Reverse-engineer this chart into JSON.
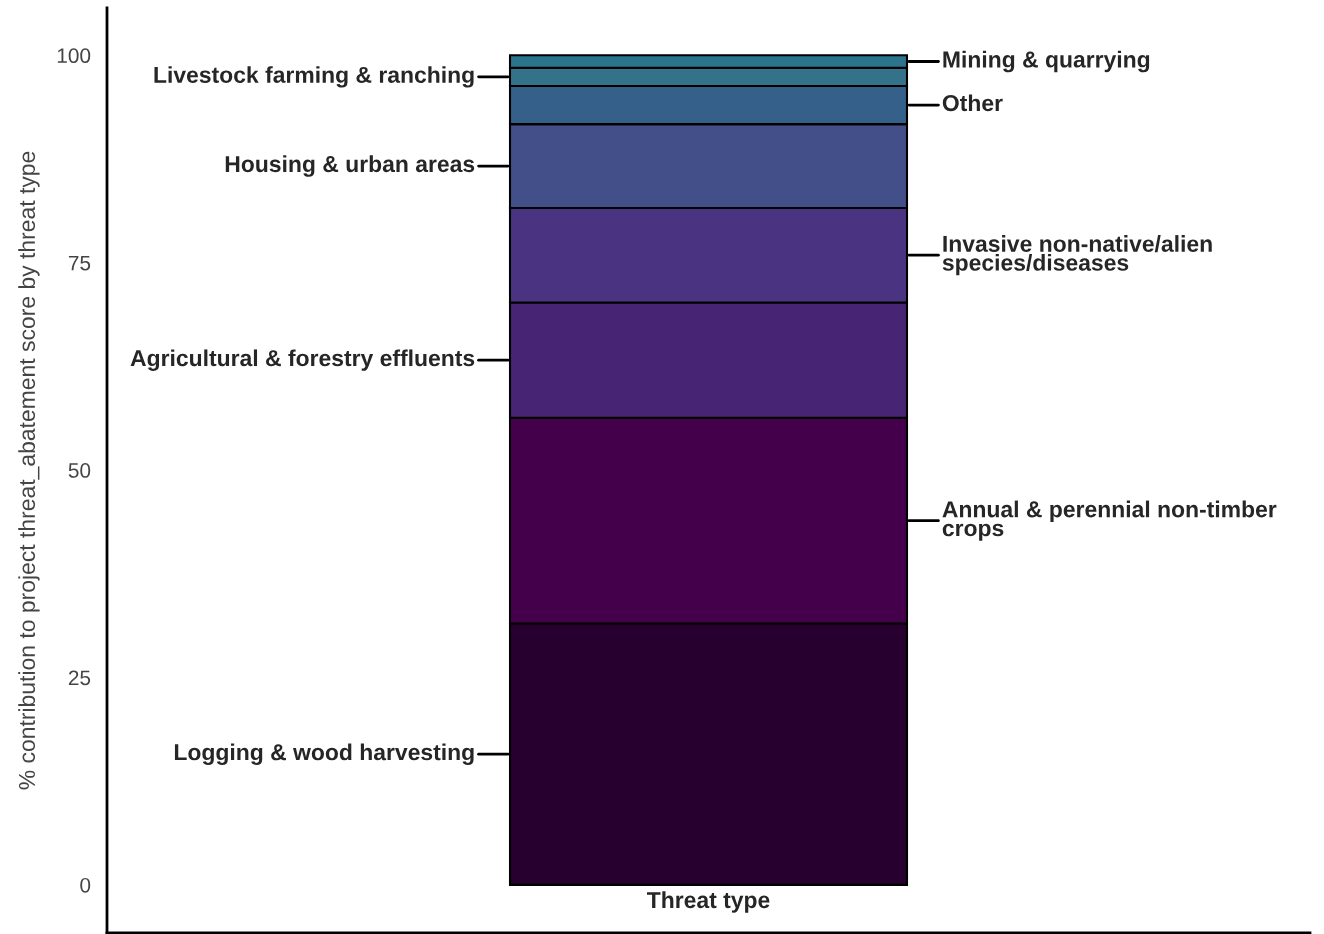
{
  "chart_data": {
    "type": "bar",
    "stacked": true,
    "categories": [
      "Threat type"
    ],
    "ylabel": "% contribution to project threat_abatement score by threat type",
    "ylim": [
      -5.8,
      105.7
    ],
    "yticks": [
      0,
      25,
      50,
      75,
      100
    ],
    "grid": false,
    "legend": "right",
    "series": [
      {
        "name": "Logging & wood harvesting",
        "color": "#28002f",
        "values": [
          31.5
        ]
      },
      {
        "name": "Annual & perennial non-timber crops",
        "color": "#45004c",
        "values": [
          24.8
        ]
      },
      {
        "name": "Agricultural & forestry effluents",
        "color": "#482474",
        "values": [
          13.9
        ]
      },
      {
        "name": "Invasive non-native/alien species/diseases",
        "color": "#4a3481",
        "values": [
          11.4
        ]
      },
      {
        "name": "Housing & urban areas",
        "color": "#424f89",
        "values": [
          10.1
        ]
      },
      {
        "name": "Other",
        "color": "#34608a",
        "values": [
          4.6
        ]
      },
      {
        "name": "Livestock farming & ranching",
        "color": "#34728a",
        "values": [
          2.2
        ]
      },
      {
        "name": "Mining & quarrying",
        "color": "#2b748c",
        "values": [
          1.5
        ]
      }
    ]
  }
}
